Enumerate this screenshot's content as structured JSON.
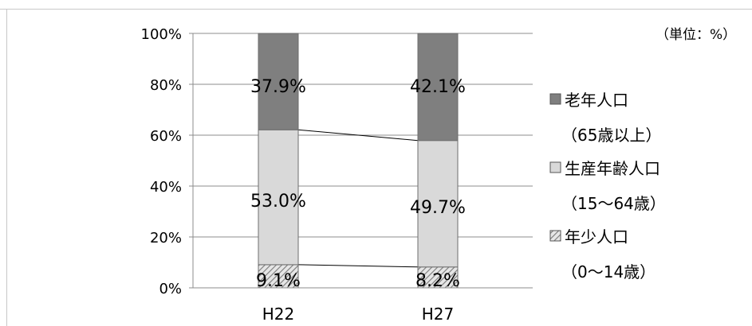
{
  "chart_data": {
    "type": "bar",
    "stacked": true,
    "categories": [
      "H22",
      "H27"
    ],
    "series": [
      {
        "name": "年少人口",
        "sub": "（0～14歳）",
        "values": [
          9.1,
          8.2
        ],
        "labels": [
          "9.1%",
          "8.2%"
        ],
        "color": "#bfbfbf",
        "pattern": "hatch"
      },
      {
        "name": "生産年齢人口",
        "sub": "（15～64歳）",
        "values": [
          53.0,
          49.7
        ],
        "labels": [
          "53.0%",
          "49.7%"
        ],
        "color": "#d9d9d9"
      },
      {
        "name": "老年人口",
        "sub": "（65歳以上）",
        "values": [
          37.9,
          42.1
        ],
        "labels": [
          "37.9%",
          "42.1%"
        ],
        "color": "#7f7f7f"
      }
    ],
    "yticks": [
      "0%",
      "20%",
      "40%",
      "60%",
      "80%",
      "100%"
    ],
    "ylim": [
      0,
      100
    ],
    "unit_note": "（単位：%）",
    "grid": true,
    "legend": "right"
  }
}
